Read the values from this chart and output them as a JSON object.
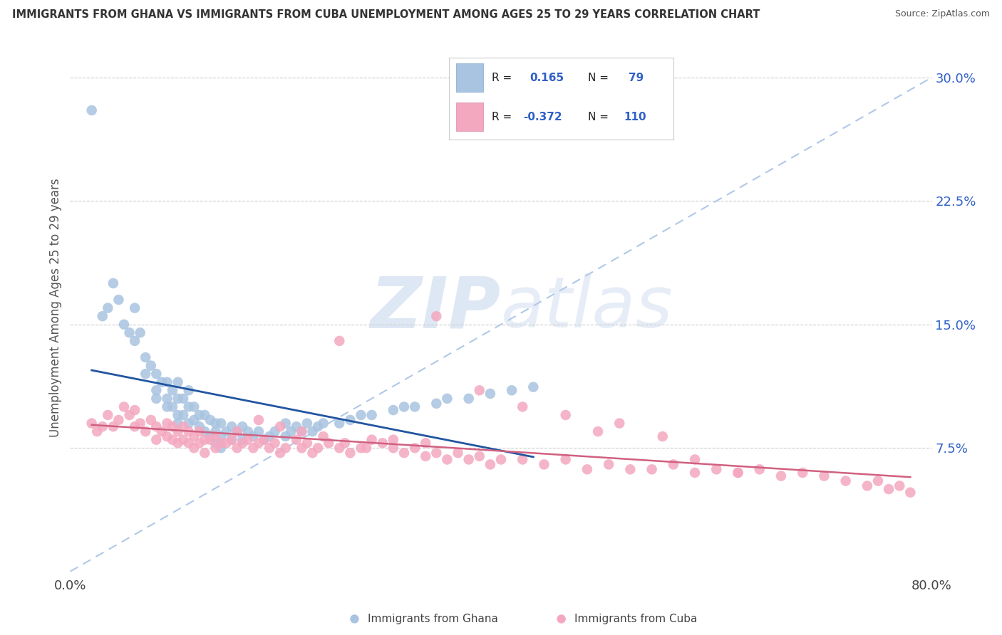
{
  "title": "IMMIGRANTS FROM GHANA VS IMMIGRANTS FROM CUBA UNEMPLOYMENT AMONG AGES 25 TO 29 YEARS CORRELATION CHART",
  "source": "Source: ZipAtlas.com",
  "ylabel": "Unemployment Among Ages 25 to 29 years",
  "xlim": [
    0.0,
    0.8
  ],
  "ylim": [
    0.0,
    0.32
  ],
  "yticks_right": [
    0.075,
    0.15,
    0.225,
    0.3
  ],
  "ytick_labels_right": [
    "7.5%",
    "15.0%",
    "22.5%",
    "30.0%"
  ],
  "ghana_R": 0.165,
  "ghana_N": 79,
  "cuba_R": -0.372,
  "cuba_N": 110,
  "ghana_color": "#a8c4e0",
  "cuba_color": "#f4a8c0",
  "ghana_line_color": "#2255a0",
  "cuba_line_color": "#d06080",
  "ref_line_color": "#b0c8e8",
  "legend_color": "#3060c8",
  "ghana_x": [
    0.02,
    0.03,
    0.035,
    0.04,
    0.045,
    0.05,
    0.055,
    0.06,
    0.06,
    0.065,
    0.07,
    0.07,
    0.075,
    0.08,
    0.08,
    0.08,
    0.085,
    0.09,
    0.09,
    0.09,
    0.095,
    0.095,
    0.1,
    0.1,
    0.1,
    0.1,
    0.105,
    0.105,
    0.11,
    0.11,
    0.11,
    0.115,
    0.115,
    0.12,
    0.12,
    0.125,
    0.125,
    0.13,
    0.13,
    0.135,
    0.135,
    0.135,
    0.14,
    0.14,
    0.14,
    0.145,
    0.15,
    0.15,
    0.155,
    0.16,
    0.16,
    0.165,
    0.17,
    0.175,
    0.18,
    0.185,
    0.19,
    0.2,
    0.2,
    0.205,
    0.21,
    0.215,
    0.22,
    0.225,
    0.23,
    0.235,
    0.25,
    0.26,
    0.27,
    0.28,
    0.3,
    0.31,
    0.32,
    0.34,
    0.35,
    0.37,
    0.39,
    0.41,
    0.43
  ],
  "ghana_y": [
    0.28,
    0.155,
    0.16,
    0.175,
    0.165,
    0.15,
    0.145,
    0.16,
    0.14,
    0.145,
    0.13,
    0.12,
    0.125,
    0.12,
    0.11,
    0.105,
    0.115,
    0.115,
    0.105,
    0.1,
    0.11,
    0.1,
    0.115,
    0.105,
    0.095,
    0.09,
    0.105,
    0.095,
    0.11,
    0.1,
    0.09,
    0.1,
    0.092,
    0.095,
    0.088,
    0.095,
    0.085,
    0.092,
    0.082,
    0.09,
    0.085,
    0.078,
    0.09,
    0.082,
    0.075,
    0.085,
    0.088,
    0.08,
    0.085,
    0.088,
    0.08,
    0.085,
    0.082,
    0.085,
    0.08,
    0.082,
    0.085,
    0.09,
    0.082,
    0.085,
    0.088,
    0.085,
    0.09,
    0.085,
    0.088,
    0.09,
    0.09,
    0.092,
    0.095,
    0.095,
    0.098,
    0.1,
    0.1,
    0.102,
    0.105,
    0.105,
    0.108,
    0.11,
    0.112
  ],
  "cuba_x": [
    0.02,
    0.025,
    0.03,
    0.035,
    0.04,
    0.045,
    0.05,
    0.055,
    0.06,
    0.06,
    0.065,
    0.07,
    0.075,
    0.08,
    0.08,
    0.085,
    0.09,
    0.09,
    0.095,
    0.095,
    0.1,
    0.1,
    0.105,
    0.105,
    0.11,
    0.11,
    0.115,
    0.115,
    0.12,
    0.12,
    0.125,
    0.125,
    0.13,
    0.135,
    0.135,
    0.14,
    0.145,
    0.15,
    0.155,
    0.16,
    0.165,
    0.17,
    0.175,
    0.18,
    0.185,
    0.19,
    0.195,
    0.2,
    0.21,
    0.215,
    0.22,
    0.225,
    0.23,
    0.24,
    0.25,
    0.26,
    0.27,
    0.28,
    0.29,
    0.3,
    0.31,
    0.32,
    0.33,
    0.34,
    0.35,
    0.37,
    0.38,
    0.39,
    0.4,
    0.42,
    0.44,
    0.46,
    0.48,
    0.5,
    0.52,
    0.54,
    0.56,
    0.58,
    0.6,
    0.62,
    0.64,
    0.66,
    0.68,
    0.7,
    0.72,
    0.74,
    0.75,
    0.76,
    0.77,
    0.78,
    0.25,
    0.34,
    0.38,
    0.42,
    0.46,
    0.49,
    0.51,
    0.55,
    0.58,
    0.62,
    0.155,
    0.175,
    0.195,
    0.215,
    0.235,
    0.255,
    0.275,
    0.3,
    0.33,
    0.36
  ],
  "cuba_y": [
    0.09,
    0.085,
    0.088,
    0.095,
    0.088,
    0.092,
    0.1,
    0.095,
    0.098,
    0.088,
    0.09,
    0.085,
    0.092,
    0.088,
    0.08,
    0.085,
    0.09,
    0.082,
    0.088,
    0.08,
    0.085,
    0.078,
    0.088,
    0.08,
    0.085,
    0.078,
    0.082,
    0.075,
    0.085,
    0.078,
    0.08,
    0.072,
    0.08,
    0.082,
    0.075,
    0.078,
    0.078,
    0.08,
    0.075,
    0.078,
    0.08,
    0.075,
    0.078,
    0.08,
    0.075,
    0.078,
    0.072,
    0.075,
    0.08,
    0.075,
    0.078,
    0.072,
    0.075,
    0.078,
    0.075,
    0.072,
    0.075,
    0.08,
    0.078,
    0.075,
    0.072,
    0.075,
    0.07,
    0.072,
    0.068,
    0.068,
    0.07,
    0.065,
    0.068,
    0.068,
    0.065,
    0.068,
    0.062,
    0.065,
    0.062,
    0.062,
    0.065,
    0.06,
    0.062,
    0.06,
    0.062,
    0.058,
    0.06,
    0.058,
    0.055,
    0.052,
    0.055,
    0.05,
    0.052,
    0.048,
    0.14,
    0.155,
    0.11,
    0.1,
    0.095,
    0.085,
    0.09,
    0.082,
    0.068,
    0.06,
    0.085,
    0.092,
    0.088,
    0.085,
    0.082,
    0.078,
    0.075,
    0.08,
    0.078,
    0.072
  ]
}
